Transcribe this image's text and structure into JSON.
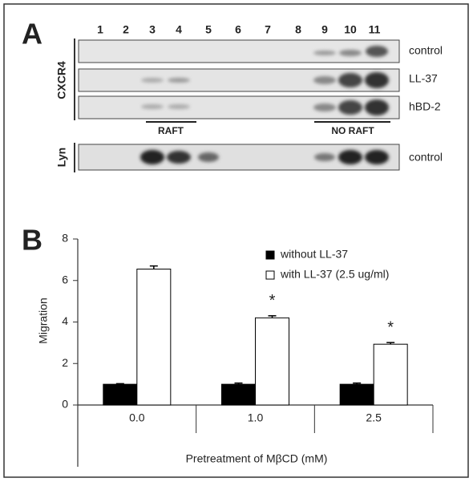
{
  "panel_a": {
    "label": "A",
    "lanes": [
      "1",
      "2",
      "3",
      "4",
      "5",
      "6",
      "7",
      "8",
      "9",
      "10",
      "11"
    ],
    "group_label": "CXCR4",
    "rows": [
      "control",
      "LL-37",
      "hBD-2"
    ],
    "raft": "RAFT",
    "no_raft": "NO RAFT",
    "lyn_label": "Lyn",
    "lyn_row": "control"
  },
  "chart_data": {
    "type": "bar",
    "panel_label": "B",
    "x_label": "Pretreatment of MβCD (mM)",
    "y_label": "Migration",
    "categories": [
      "0.0",
      "1.0",
      "2.5"
    ],
    "series": [
      {
        "name": "without LL-37",
        "color": "#000000",
        "values": [
          1,
          1,
          1
        ],
        "errors": [
          0.03,
          0.06,
          0.06
        ]
      },
      {
        "name": "with LL-37 (2.5 ug/ml)",
        "color": "#ffffff",
        "values": [
          6.55,
          4.2,
          2.93
        ],
        "errors": [
          0.15,
          0.1,
          0.08
        ],
        "significance": [
          null,
          "*",
          "*"
        ]
      }
    ],
    "ylim": [
      0,
      8
    ],
    "yticks": [
      0,
      2,
      4,
      6,
      8
    ],
    "legend": "upper right"
  }
}
